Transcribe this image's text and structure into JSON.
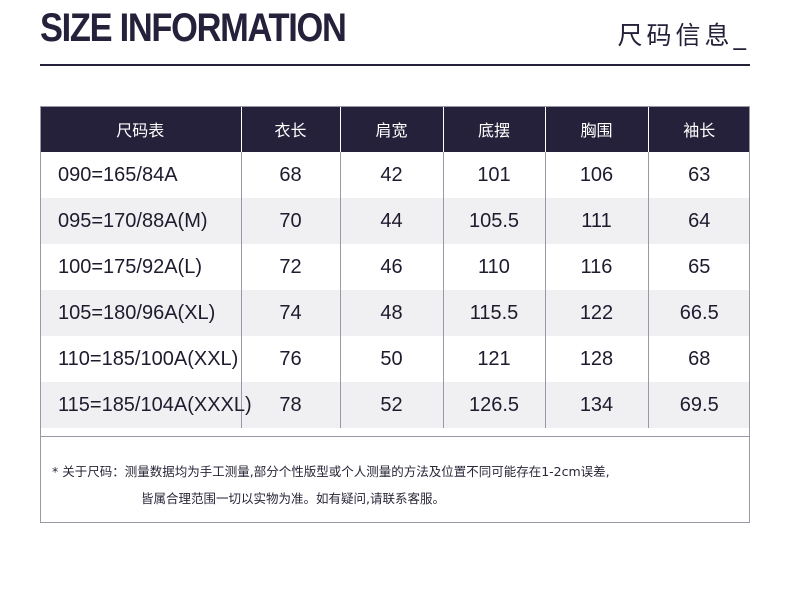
{
  "header": {
    "title_en": "SIZE INFORMATION",
    "title_cn": "尺码信息_"
  },
  "table": {
    "columns": [
      "尺码表",
      "衣长",
      "肩宽",
      "底摆",
      "胸围",
      "袖长"
    ],
    "rows": [
      [
        "090=165/84A",
        "68",
        "42",
        "101",
        "106",
        "63"
      ],
      [
        "095=170/88A(M)",
        "70",
        "44",
        "105.5",
        "111",
        "64"
      ],
      [
        "100=175/92A(L)",
        "72",
        "46",
        "110",
        "116",
        "65"
      ],
      [
        "105=180/96A(XL)",
        "74",
        "48",
        "115.5",
        "122",
        "66.5"
      ],
      [
        "110=185/100A(XXL)",
        "76",
        "50",
        "121",
        "128",
        "68"
      ],
      [
        "115=185/104A(XXXL)",
        "78",
        "52",
        "126.5",
        "134",
        "69.5"
      ]
    ]
  },
  "note": {
    "line1": "* 关于尺码：测量数据均为手工测量,部分个性版型或个人测量的方法及位置不同可能存在1-2cm误差,",
    "line2": "皆属合理范围一切以实物为准。如有疑问,请联系客服。"
  },
  "colors": {
    "header_bg": "#25213a",
    "stripe": "#f0f0f2",
    "border": "#9a97a6"
  }
}
